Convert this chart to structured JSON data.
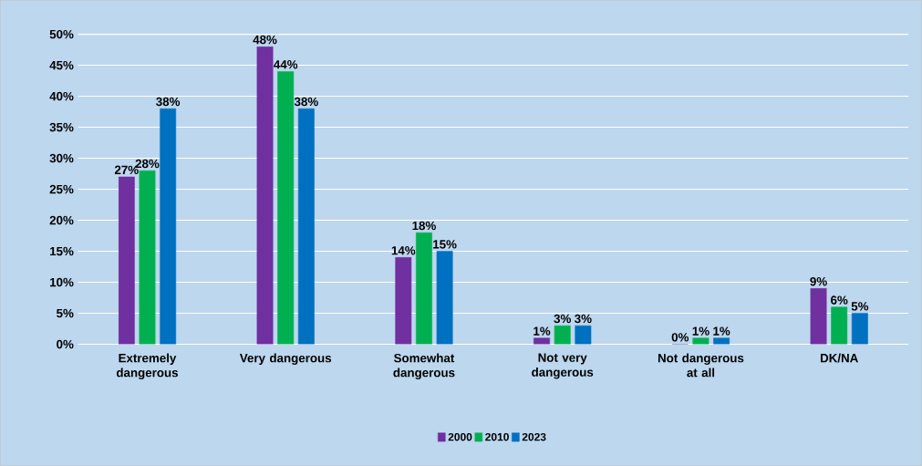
{
  "chart_data": {
    "type": "bar",
    "categories": [
      "Extremely dangerous",
      "Very dangerous",
      "Somewhat dangerous",
      "Not very dangerous",
      "Not dangerous at all",
      "DK/NA"
    ],
    "series": [
      {
        "name": "2000",
        "color": "#7030a0",
        "values": [
          27,
          48,
          14,
          1,
          0,
          9
        ],
        "value_labels": [
          "27%",
          "48%",
          "14%",
          "1%",
          "0%",
          "9%"
        ]
      },
      {
        "name": "2010",
        "color": "#00b050",
        "values": [
          28,
          44,
          18,
          3,
          1,
          6
        ],
        "value_labels": [
          "28%",
          "44%",
          "18%",
          "3%",
          "1%",
          "6%"
        ]
      },
      {
        "name": "2023",
        "color": "#0070c0",
        "values": [
          38,
          38,
          15,
          3,
          1,
          5
        ],
        "value_labels": [
          "38%",
          "38%",
          "15%",
          "3%",
          "1%",
          "5%"
        ]
      }
    ],
    "ylim": [
      0,
      50
    ],
    "yticks": [
      {
        "value": 0,
        "label": "0%"
      },
      {
        "value": 5,
        "label": "5%"
      },
      {
        "value": 10,
        "label": "10%"
      },
      {
        "value": 15,
        "label": "15%"
      },
      {
        "value": 20,
        "label": "20%"
      },
      {
        "value": 25,
        "label": "25%"
      },
      {
        "value": 30,
        "label": "30%"
      },
      {
        "value": 35,
        "label": "35%"
      },
      {
        "value": 40,
        "label": "40%"
      },
      {
        "value": 45,
        "label": "45%"
      },
      {
        "value": 50,
        "label": "50%"
      }
    ],
    "grid": "y",
    "legend": "bottom"
  }
}
